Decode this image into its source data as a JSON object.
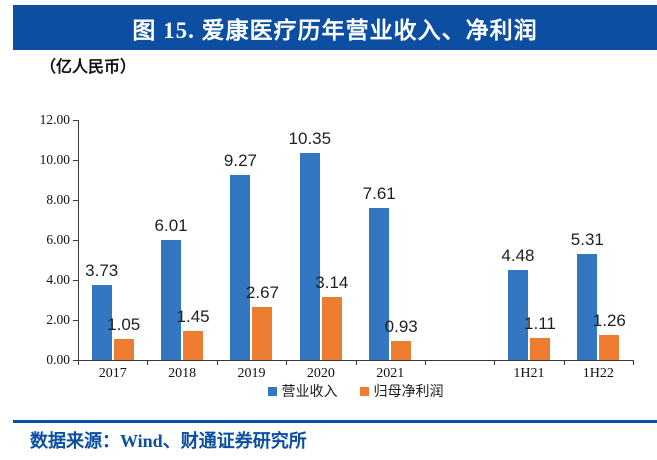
{
  "header": {
    "title": "图 15. 爱康医疗历年营业收入、净利润",
    "bg_color": "#0B4EA2",
    "text_color": "#FFFFFF"
  },
  "unit_label": "（亿人民币）",
  "chart_data": {
    "type": "bar",
    "title": "图 15. 爱康医疗历年营业收入、净利润",
    "categories": [
      "2017",
      "2018",
      "2019",
      "2020",
      "2021",
      "",
      "1H21",
      "1H22"
    ],
    "series": [
      {
        "name": "营业收入",
        "color": "#3376C2",
        "values": [
          3.73,
          6.01,
          9.27,
          10.35,
          7.61,
          null,
          4.48,
          5.31
        ]
      },
      {
        "name": "归母净利润",
        "color": "#ED7D31",
        "values": [
          1.05,
          1.45,
          2.67,
          3.14,
          0.93,
          null,
          1.11,
          1.26
        ]
      }
    ],
    "xlabel": "",
    "ylabel": "（亿人民币）",
    "ylim": [
      0,
      12
    ],
    "y_ticks": [
      "12.00",
      "10.00",
      "8.00",
      "6.00",
      "4.00",
      "2.00",
      "0.00"
    ],
    "grid": false,
    "legend_position": "bottom-center",
    "data_labels": true
  },
  "footer": {
    "source_text": "数据来源：Wind、财通证券研究所",
    "color": "#0B4EA2"
  }
}
